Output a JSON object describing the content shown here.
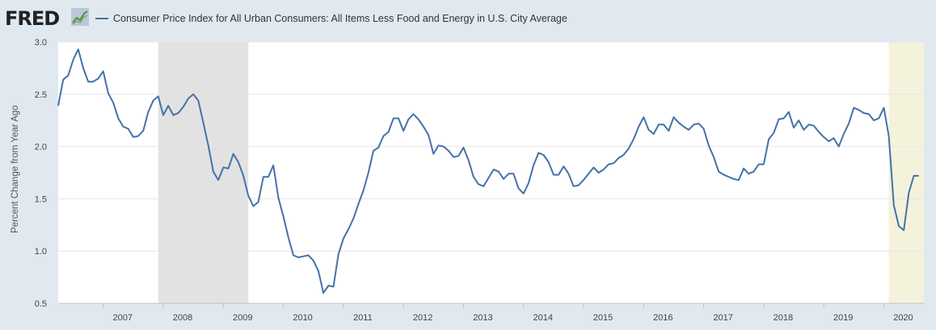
{
  "logo": {
    "text": "FRED",
    "icon": "fred-chart-line-icon"
  },
  "legend": {
    "series_name": "Consumer Price Index for All Urban Consumers: All Items Less Food and Energy in U.S. City Average",
    "color": "#4572a7"
  },
  "chart_data": {
    "type": "line",
    "title": "",
    "xlabel": "",
    "ylabel": "Percent Change from Year Ago",
    "xlim": [
      2006.25,
      2020.667
    ],
    "ylim": [
      0.5,
      3.0
    ],
    "yticks": [
      "0.5",
      "1.0",
      "1.5",
      "2.0",
      "2.5",
      "3.0"
    ],
    "xticks": [
      "2007",
      "2008",
      "2009",
      "2010",
      "2011",
      "2012",
      "2013",
      "2014",
      "2015",
      "2016",
      "2017",
      "2018",
      "2019",
      "2020"
    ],
    "grid": true,
    "line_color": "#4572a7",
    "recessions": [
      {
        "start": 2007.917,
        "end": 2009.417,
        "color": "#e2e2e2"
      },
      {
        "start": 2020.083,
        "end": 2020.667,
        "color": "#f4f2db"
      }
    ],
    "series": [
      {
        "start": 2006.25,
        "step_months": 1,
        "values": [
          2.39,
          2.64,
          2.68,
          2.83,
          2.93,
          2.75,
          2.62,
          2.62,
          2.65,
          2.72,
          2.51,
          2.42,
          2.27,
          2.19,
          2.17,
          2.09,
          2.1,
          2.15,
          2.33,
          2.44,
          2.48,
          2.3,
          2.39,
          2.3,
          2.32,
          2.38,
          2.46,
          2.5,
          2.44,
          2.23,
          2.01,
          1.76,
          1.68,
          1.8,
          1.79,
          1.93,
          1.85,
          1.72,
          1.53,
          1.43,
          1.47,
          1.71,
          1.71,
          1.82,
          1.51,
          1.33,
          1.13,
          0.96,
          0.94,
          0.95,
          0.96,
          0.91,
          0.81,
          0.6,
          0.67,
          0.66,
          0.97,
          1.12,
          1.21,
          1.31,
          1.45,
          1.58,
          1.75,
          1.96,
          1.99,
          2.1,
          2.14,
          2.27,
          2.27,
          2.15,
          2.26,
          2.31,
          2.26,
          2.19,
          2.11,
          1.93,
          2.01,
          2.0,
          1.96,
          1.9,
          1.91,
          1.99,
          1.87,
          1.71,
          1.64,
          1.62,
          1.7,
          1.78,
          1.76,
          1.69,
          1.74,
          1.74,
          1.6,
          1.55,
          1.65,
          1.82,
          1.94,
          1.92,
          1.85,
          1.73,
          1.73,
          1.81,
          1.74,
          1.62,
          1.63,
          1.68,
          1.74,
          1.8,
          1.75,
          1.78,
          1.83,
          1.84,
          1.89,
          1.92,
          1.98,
          2.07,
          2.19,
          2.28,
          2.16,
          2.12,
          2.21,
          2.21,
          2.15,
          2.28,
          2.23,
          2.19,
          2.16,
          2.21,
          2.22,
          2.17,
          2.01,
          1.9,
          1.76,
          1.73,
          1.71,
          1.69,
          1.68,
          1.79,
          1.74,
          1.76,
          1.83,
          1.83,
          2.07,
          2.13,
          2.26,
          2.27,
          2.33,
          2.18,
          2.25,
          2.16,
          2.21,
          2.2,
          2.14,
          2.09,
          2.05,
          2.08,
          2.0,
          2.12,
          2.22,
          2.37,
          2.35,
          2.32,
          2.31,
          2.25,
          2.27,
          2.37,
          2.1,
          1.44,
          1.24,
          1.2,
          1.56,
          1.72,
          1.72
        ]
      }
    ]
  }
}
